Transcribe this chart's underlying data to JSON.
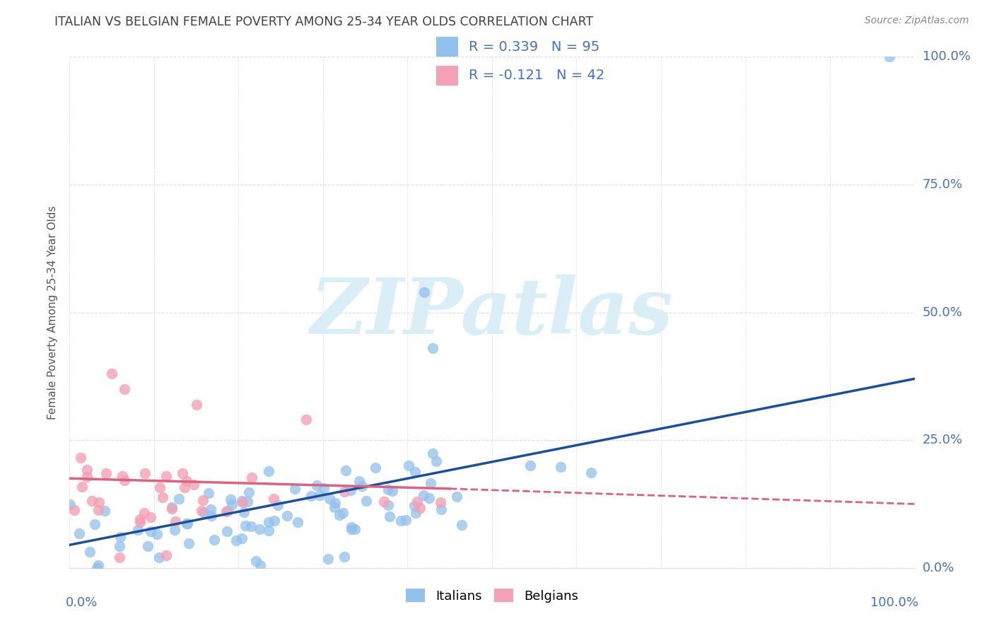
{
  "title": "ITALIAN VS BELGIAN FEMALE POVERTY AMONG 25-34 YEAR OLDS CORRELATION CHART",
  "source": "Source: ZipAtlas.com",
  "ylabel": "Female Poverty Among 25-34 Year Olds",
  "legend_italian_R": "0.339",
  "legend_italian_N": "95",
  "legend_belgian_R": "-0.121",
  "legend_belgian_N": "42",
  "italian_color": "#92C1ED",
  "belgian_color": "#F4A0B5",
  "italian_line_color": "#1A4FA0",
  "belgian_line_color": "#E06080",
  "watermark_text": "ZIPatlas",
  "watermark_color": "#DAEEF8",
  "label_color": "#4472C4",
  "title_color": "#404040",
  "source_color": "#888888",
  "grid_color": "#DDDDDD",
  "italian_trend_x0": 0.0,
  "italian_trend_y0": 0.045,
  "italian_trend_x1": 1.0,
  "italian_trend_y1": 0.37,
  "belgian_trend_x0": 0.0,
  "belgian_trend_y0": 0.175,
  "belgian_trend_x1": 0.45,
  "belgian_trend_y1": 0.155,
  "belgian_trend_dash_x0": 0.45,
  "belgian_trend_dash_y0": 0.155,
  "belgian_trend_dash_x1": 1.0,
  "belgian_trend_dash_y1": 0.125,
  "xlim": [
    0.0,
    1.0
  ],
  "ylim": [
    0.0,
    1.0
  ],
  "ytick_pct": [
    "0.0%",
    "25.0%",
    "50.0%",
    "75.0%",
    "100.0%"
  ],
  "ytick_vals": [
    0.0,
    0.25,
    0.5,
    0.75,
    1.0
  ]
}
